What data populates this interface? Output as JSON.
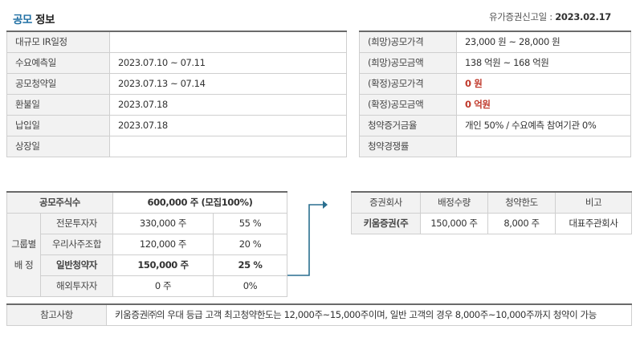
{
  "header": {
    "title_accent": "공모",
    "title_rest": " 정보",
    "filing_label": "유가증권신고일 : ",
    "filing_date": "2023.02.17"
  },
  "schedule": [
    {
      "label": "대규모 IR일정",
      "value": ""
    },
    {
      "label": "수요예측일",
      "value": "2023.07.10 ~ 07.11"
    },
    {
      "label": "공모청약일",
      "value": "2023.07.13 ~ 07.14"
    },
    {
      "label": "환불일",
      "value": "2023.07.18"
    },
    {
      "label": "납입일",
      "value": "2023.07.18"
    },
    {
      "label": "상장일",
      "value": ""
    }
  ],
  "pricing": [
    {
      "label": "(희망)공모가격",
      "value": "23,000 원 ~ 28,000 원"
    },
    {
      "label": "(희망)공모금액",
      "value": "138 억원  ~ 168 억원"
    },
    {
      "label": "(확정)공모가격",
      "value": "0 원"
    },
    {
      "label": "(확정)공모금액",
      "value": "0 억원"
    },
    {
      "label": "청약증거금율",
      "value": "개인 50% / 수요예측 참여기관 0%"
    },
    {
      "label": "청약경쟁률",
      "value": ""
    }
  ],
  "offering": {
    "total_label": "공모주식수",
    "total_value": "600,000 주 (모집100%)",
    "group_label_1": "그룹별",
    "group_label_2": "배 정",
    "rows": [
      {
        "name": "전문투자자",
        "shares": "330,000 주",
        "pct": "55 %"
      },
      {
        "name": "우리사주조합",
        "shares": "120,000 주",
        "pct": "20 %"
      },
      {
        "name": "일반청약자",
        "shares": "150,000 주",
        "pct": "25 %"
      },
      {
        "name": "해외투자자",
        "shares": "0 주",
        "pct": "0%"
      }
    ]
  },
  "broker": {
    "headers": [
      "증권회사",
      "배정수량",
      "청약한도",
      "비고"
    ],
    "row": {
      "company": "키움증권(주",
      "allocation": "150,000 주",
      "limit": "8,000 주",
      "note": "대표주관회사"
    }
  },
  "note": {
    "label": "참고사항",
    "text": "키움증권㈜의 우대 등급 고객 최고청약한도는 12,000주~15,000주이며, 일반 고객의 경우 8,000주~10,000주까지 청약이 가능"
  },
  "colors": {
    "accent": "#1f6fa3",
    "confirmed_red": "#c0392b",
    "connector": "#2a6f8f"
  }
}
